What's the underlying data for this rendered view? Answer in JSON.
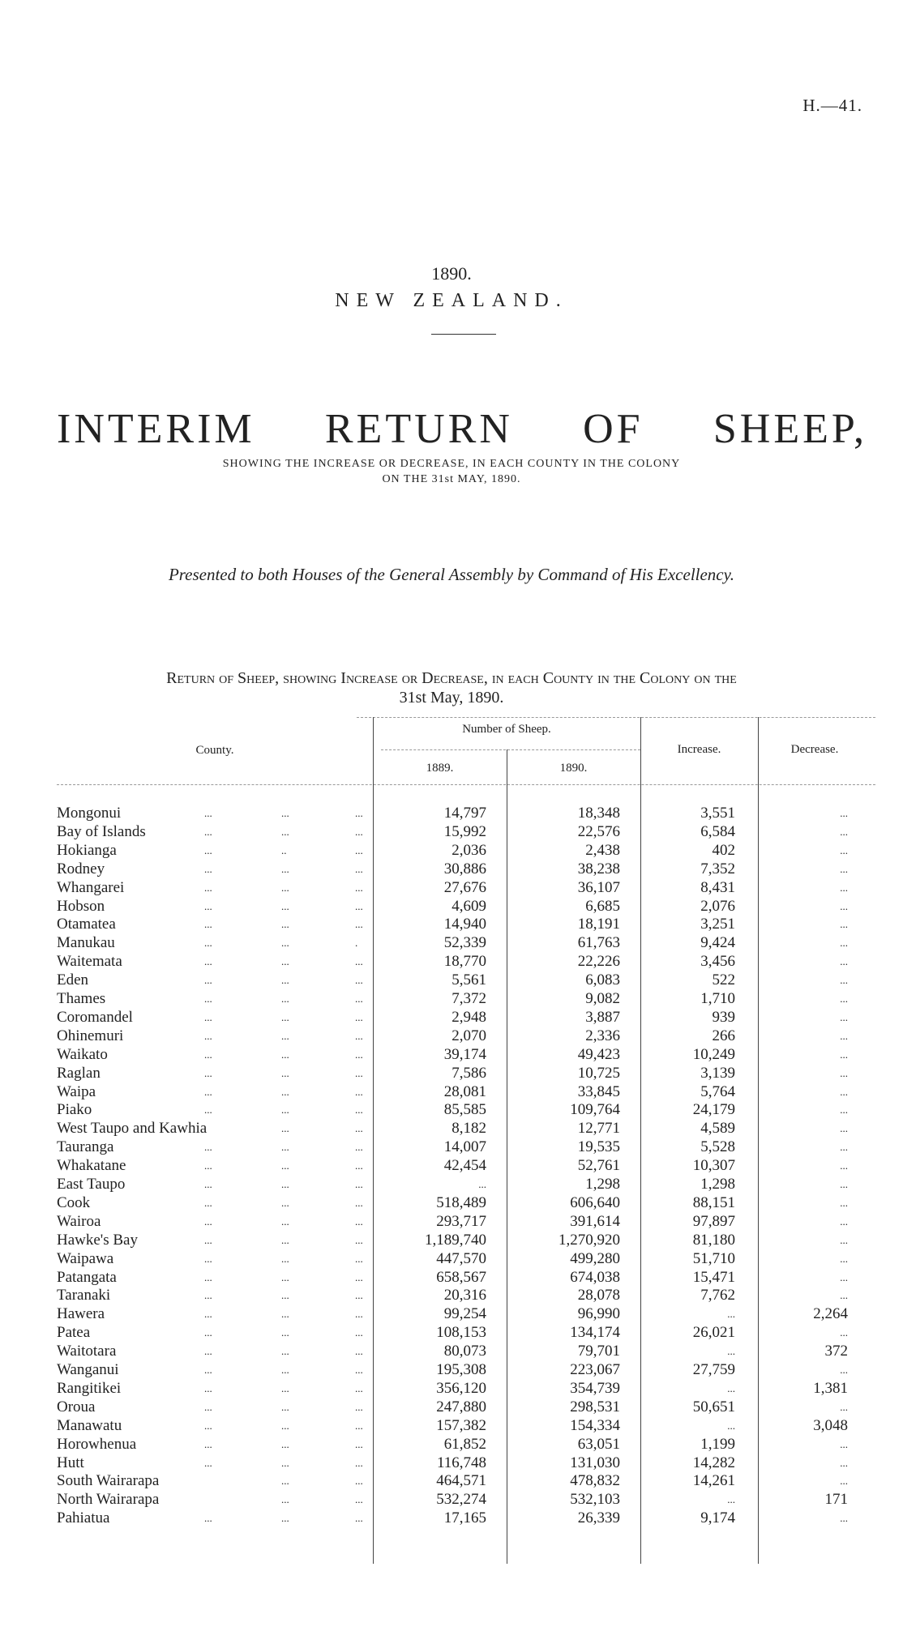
{
  "page_ref": "H.—41.",
  "year": "1890.",
  "country": "NEW ZEALAND.",
  "title": "INTERIM RETURN OF SHEEP,",
  "subtitle_line1": "SHOWING THE INCREASE OR DECREASE, IN EACH COUNTY IN THE COLONY",
  "subtitle_line2": "ON THE 31st MAY, 1890.",
  "presented": "Presented to both Houses of the General Assembly by Command of His Excellency.",
  "return_heading_line1": "Return of Sheep, showing Increase or Decrease, in each County in the Colony on the",
  "return_heading_line2": "31st May, 1890.",
  "table": {
    "headers": {
      "county": "County.",
      "number_of_sheep": "Number of Sheep.",
      "y1889": "1889.",
      "y1890": "1890.",
      "increase": "Increase.",
      "decrease": "Decrease."
    },
    "rows": [
      {
        "county": "Mongonui",
        "leaders": [
          "...",
          "...",
          "..."
        ],
        "y1889": "14,797",
        "y1890": "18,348",
        "increase": "3,551",
        "decrease": "..."
      },
      {
        "county": "Bay of Islands",
        "leaders": [
          "...",
          "...",
          "..."
        ],
        "y1889": "15,992",
        "y1890": "22,576",
        "increase": "6,584",
        "decrease": "..."
      },
      {
        "county": "Hokianga",
        "leaders": [
          "...",
          "..",
          "..."
        ],
        "y1889": "2,036",
        "y1890": "2,438",
        "increase": "402",
        "decrease": "..."
      },
      {
        "county": "Rodney",
        "leaders": [
          "...",
          "...",
          "..."
        ],
        "y1889": "30,886",
        "y1890": "38,238",
        "increase": "7,352",
        "decrease": "..."
      },
      {
        "county": "Whangarei",
        "leaders": [
          "...",
          "...",
          "..."
        ],
        "y1889": "27,676",
        "y1890": "36,107",
        "increase": "8,431",
        "decrease": "..."
      },
      {
        "county": "Hobson",
        "leaders": [
          "...",
          "...",
          "..."
        ],
        "y1889": "4,609",
        "y1890": "6,685",
        "increase": "2,076",
        "decrease": "..."
      },
      {
        "county": "Otamatea",
        "leaders": [
          "...",
          "...",
          "..."
        ],
        "y1889": "14,940",
        "y1890": "18,191",
        "increase": "3,251",
        "decrease": "..."
      },
      {
        "county": "Manukau",
        "leaders": [
          "...",
          "...",
          "."
        ],
        "y1889": "52,339",
        "y1890": "61,763",
        "increase": "9,424",
        "decrease": "..."
      },
      {
        "county": "Waitemata",
        "leaders": [
          "...",
          "...",
          "..."
        ],
        "y1889": "18,770",
        "y1890": "22,226",
        "increase": "3,456",
        "decrease": "..."
      },
      {
        "county": "Eden",
        "leaders": [
          "...",
          "...",
          "..."
        ],
        "y1889": "5,561",
        "y1890": "6,083",
        "increase": "522",
        "decrease": "..."
      },
      {
        "county": "Thames",
        "leaders": [
          "...",
          "...",
          "..."
        ],
        "y1889": "7,372",
        "y1890": "9,082",
        "increase": "1,710",
        "decrease": "..."
      },
      {
        "county": "Coromandel",
        "leaders": [
          "...",
          "...",
          "..."
        ],
        "y1889": "2,948",
        "y1890": "3,887",
        "increase": "939",
        "decrease": "..."
      },
      {
        "county": "Ohinemuri",
        "leaders": [
          "...",
          "...",
          "..."
        ],
        "y1889": "2,070",
        "y1890": "2,336",
        "increase": "266",
        "decrease": "..."
      },
      {
        "county": "Waikato",
        "leaders": [
          "...",
          "...",
          "..."
        ],
        "y1889": "39,174",
        "y1890": "49,423",
        "increase": "10,249",
        "decrease": "..."
      },
      {
        "county": "Raglan",
        "leaders": [
          "...",
          "...",
          "..."
        ],
        "y1889": "7,586",
        "y1890": "10,725",
        "increase": "3,139",
        "decrease": "..."
      },
      {
        "county": "Waipa",
        "leaders": [
          "...",
          "...",
          "..."
        ],
        "y1889": "28,081",
        "y1890": "33,845",
        "increase": "5,764",
        "decrease": "..."
      },
      {
        "county": "Piako",
        "leaders": [
          "...",
          "...",
          "..."
        ],
        "y1889": "85,585",
        "y1890": "109,764",
        "increase": "24,179",
        "decrease": "..."
      },
      {
        "county": "West Taupo and Kawhia",
        "leaders": [
          "",
          "...",
          "..."
        ],
        "y1889": "8,182",
        "y1890": "12,771",
        "increase": "4,589",
        "decrease": "..."
      },
      {
        "county": "Tauranga",
        "leaders": [
          "...",
          "...",
          "..."
        ],
        "y1889": "14,007",
        "y1890": "19,535",
        "increase": "5,528",
        "decrease": "..."
      },
      {
        "county": "Whakatane",
        "leaders": [
          "...",
          "...",
          "..."
        ],
        "y1889": "42,454",
        "y1890": "52,761",
        "increase": "10,307",
        "decrease": "..."
      },
      {
        "county": "East Taupo",
        "leaders": [
          "...",
          "...",
          "..."
        ],
        "y1889": "...",
        "y1890": "1,298",
        "increase": "1,298",
        "decrease": "..."
      },
      {
        "county": "Cook",
        "leaders": [
          "...",
          "...",
          "..."
        ],
        "y1889": "518,489",
        "y1890": "606,640",
        "increase": "88,151",
        "decrease": "..."
      },
      {
        "county": "Wairoa",
        "leaders": [
          "...",
          "...",
          "..."
        ],
        "y1889": "293,717",
        "y1890": "391,614",
        "increase": "97,897",
        "decrease": "..."
      },
      {
        "county": "Hawke's Bay",
        "leaders": [
          "...",
          "...",
          "..."
        ],
        "y1889": "1,189,740",
        "y1890": "1,270,920",
        "increase": "81,180",
        "decrease": "..."
      },
      {
        "county": "Waipawa",
        "leaders": [
          "...",
          "...",
          "..."
        ],
        "y1889": "447,570",
        "y1890": "499,280",
        "increase": "51,710",
        "decrease": "..."
      },
      {
        "county": "Patangata",
        "leaders": [
          "...",
          "...",
          "..."
        ],
        "y1889": "658,567",
        "y1890": "674,038",
        "increase": "15,471",
        "decrease": "..."
      },
      {
        "county": "Taranaki",
        "leaders": [
          "...",
          "...",
          "..."
        ],
        "y1889": "20,316",
        "y1890": "28,078",
        "increase": "7,762",
        "decrease": "..."
      },
      {
        "county": "Hawera",
        "leaders": [
          "...",
          "...",
          "..."
        ],
        "y1889": "99,254",
        "y1890": "96,990",
        "increase": "...",
        "decrease": "2,264"
      },
      {
        "county": "Patea",
        "leaders": [
          "...",
          "...",
          "..."
        ],
        "y1889": "108,153",
        "y1890": "134,174",
        "increase": "26,021",
        "decrease": "..."
      },
      {
        "county": "Waitotara",
        "leaders": [
          "...",
          "...",
          "..."
        ],
        "y1889": "80,073",
        "y1890": "79,701",
        "increase": "...",
        "decrease": "372"
      },
      {
        "county": "Wanganui",
        "leaders": [
          "...",
          "...",
          "..."
        ],
        "y1889": "195,308",
        "y1890": "223,067",
        "increase": "27,759",
        "decrease": "..."
      },
      {
        "county": "Rangitikei",
        "leaders": [
          "...",
          "...",
          "..."
        ],
        "y1889": "356,120",
        "y1890": "354,739",
        "increase": "...",
        "decrease": "1,381"
      },
      {
        "county": "Oroua",
        "leaders": [
          "...",
          "...",
          "..."
        ],
        "y1889": "247,880",
        "y1890": "298,531",
        "increase": "50,651",
        "decrease": "..."
      },
      {
        "county": "Manawatu",
        "leaders": [
          "...",
          "...",
          "..."
        ],
        "y1889": "157,382",
        "y1890": "154,334",
        "increase": "...",
        "decrease": "3,048"
      },
      {
        "county": "Horowhenua",
        "leaders": [
          "...",
          "...",
          "..."
        ],
        "y1889": "61,852",
        "y1890": "63,051",
        "increase": "1,199",
        "decrease": "..."
      },
      {
        "county": "Hutt",
        "leaders": [
          "...",
          "...",
          "..."
        ],
        "y1889": "116,748",
        "y1890": "131,030",
        "increase": "14,282",
        "decrease": "..."
      },
      {
        "county": "South Wairarapa",
        "leaders": [
          "",
          "...",
          "..."
        ],
        "y1889": "464,571",
        "y1890": "478,832",
        "increase": "14,261",
        "decrease": "..."
      },
      {
        "county": "North Wairarapa",
        "leaders": [
          "",
          "...",
          "..."
        ],
        "y1889": "532,274",
        "y1890": "532,103",
        "increase": "...",
        "decrease": "171"
      },
      {
        "county": "Pahiatua",
        "leaders": [
          "...",
          "...",
          "..."
        ],
        "y1889": "17,165",
        "y1890": "26,339",
        "increase": "9,174",
        "decrease": "..."
      }
    ]
  }
}
